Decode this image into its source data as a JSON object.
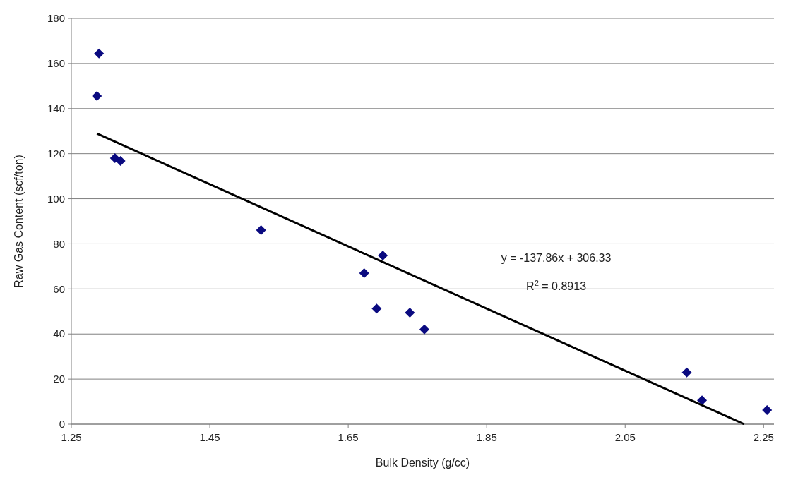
{
  "chart_data": {
    "type": "scatter",
    "xlabel": "Bulk Density (g/cc)",
    "ylabel": "Raw Gas Content (scf/ton)",
    "xlim": [
      1.25,
      2.265
    ],
    "xticks": [
      1.25,
      1.45,
      1.65,
      1.85,
      2.05,
      2.25
    ],
    "ylim": [
      0,
      180
    ],
    "yticks": [
      0,
      20,
      40,
      60,
      80,
      100,
      120,
      140,
      160,
      180
    ],
    "grid": "y",
    "annotations": [
      "y = -137.86x + 306.33",
      "R$^{2}$ = 0.8913"
    ],
    "series": [
      {
        "marker": "diamond",
        "color": "#0a0a80",
        "x": [
          1.287,
          1.29,
          1.313,
          1.321,
          1.524,
          1.673,
          1.7,
          1.691,
          1.739,
          1.76,
          2.139,
          2.161,
          2.255
        ],
        "values": [
          145.6,
          164.4,
          118,
          116.8,
          86.1,
          67,
          74.8,
          51.3,
          49.5,
          42,
          22.9,
          10.6,
          6.3
        ]
      },
      {
        "type": "line",
        "color": "#000000",
        "x": [
          1.287,
          2.222
        ],
        "values": [
          128.9,
          0
        ]
      }
    ]
  }
}
